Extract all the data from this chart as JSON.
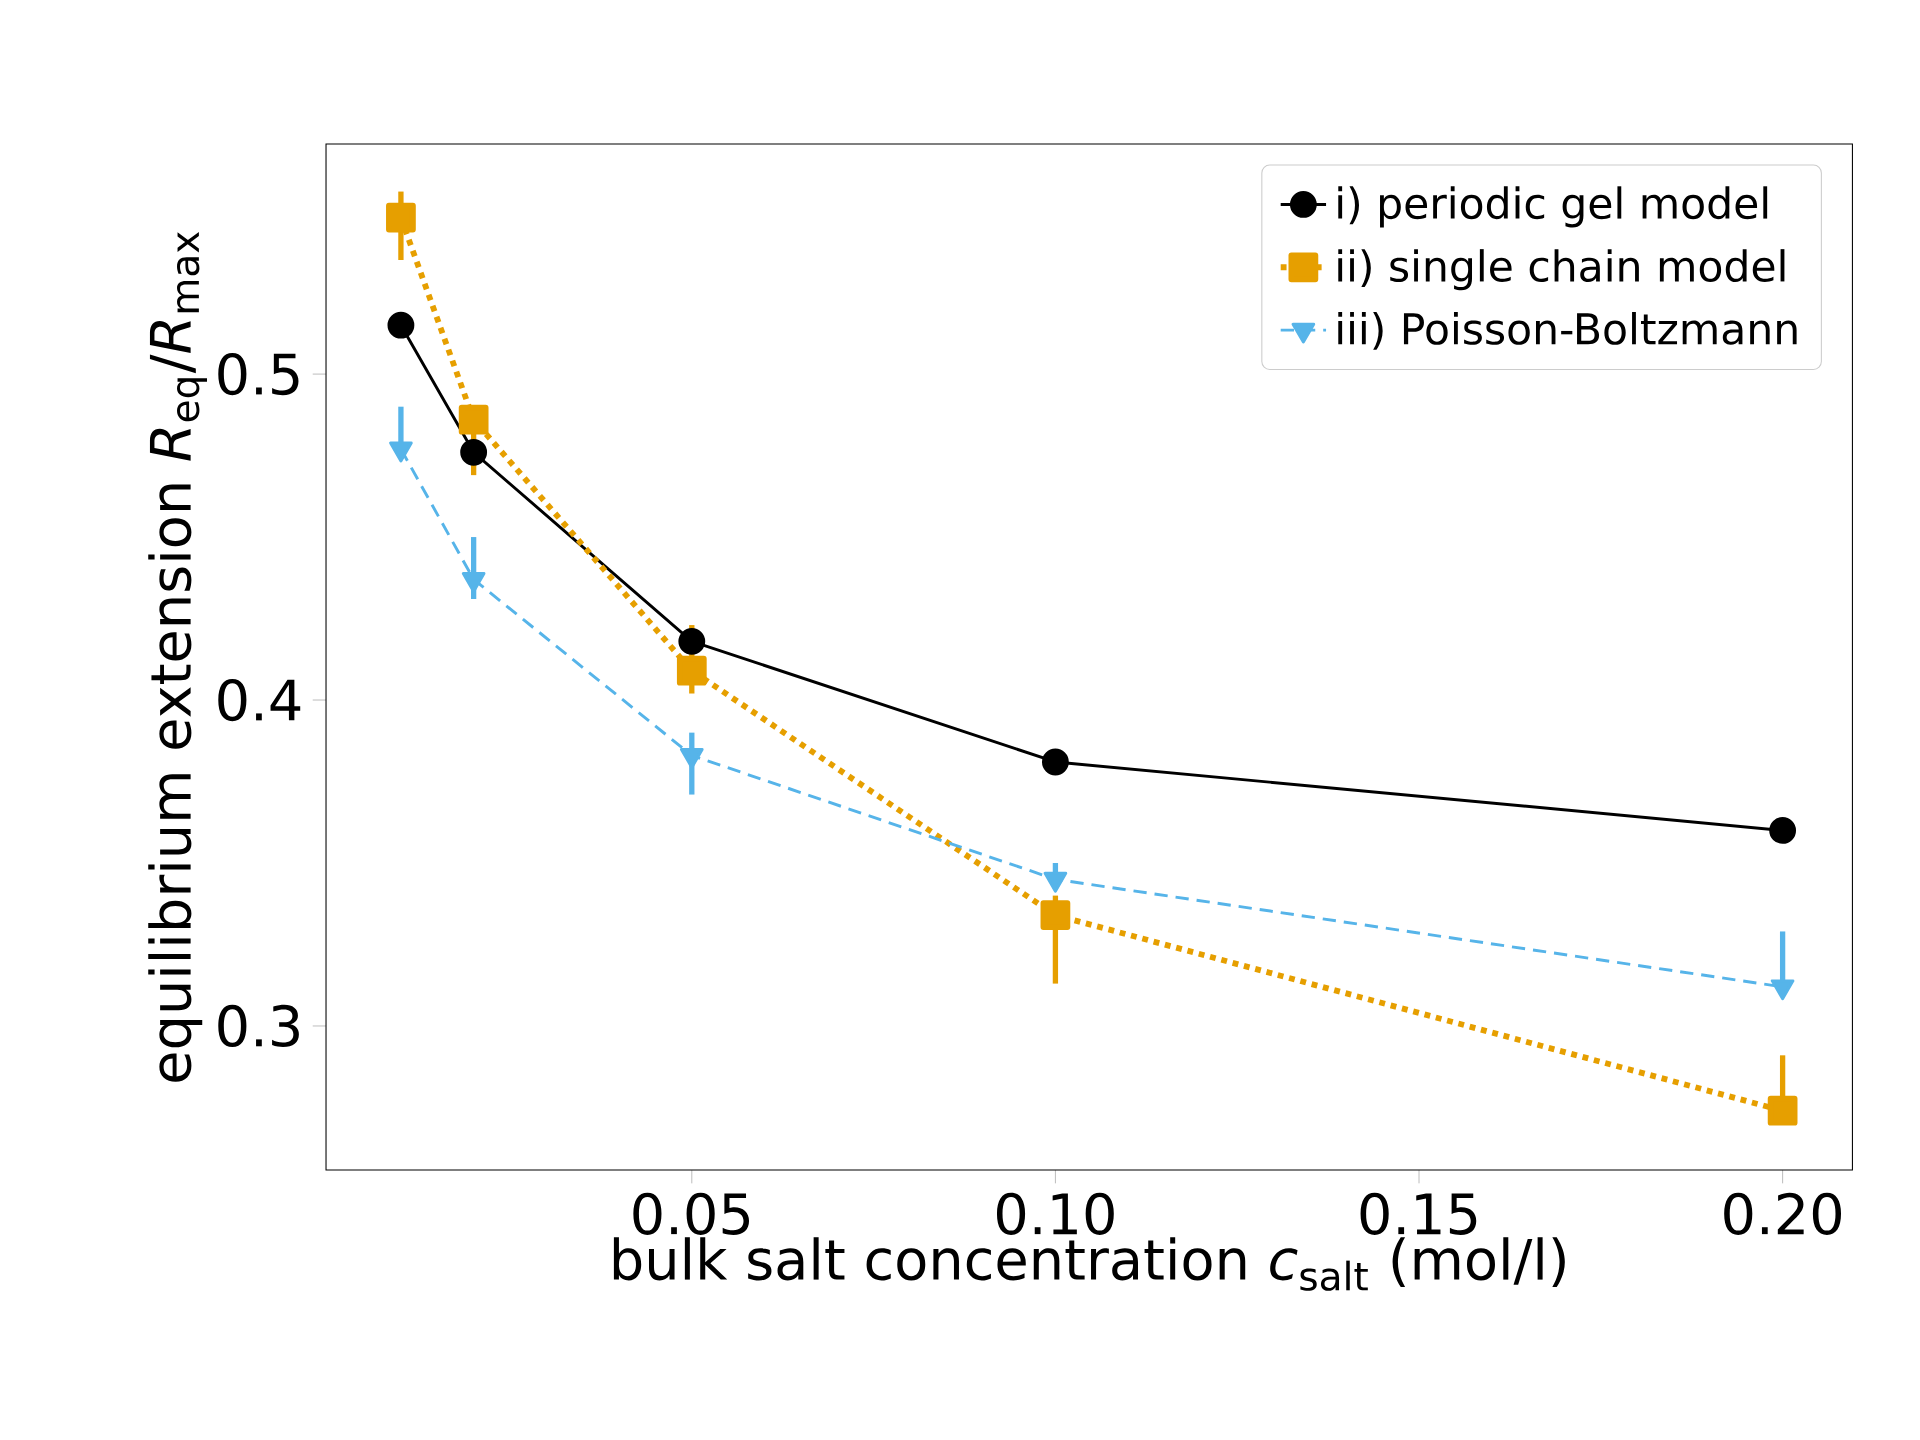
{
  "chart_data": {
    "type": "line",
    "xlabel": "bulk salt concentration *c*$_{salt}$ (mol/l)",
    "ylabel": "equilibrium extension *R*$_{eq}$/*R*$_{max}$",
    "x": [
      0.01,
      0.02,
      0.05,
      0.1,
      0.2
    ],
    "series": [
      {
        "name": "i) periodic gel model",
        "color": "#000000",
        "marker": "circle",
        "line_style": "solid",
        "values": [
          0.515,
          0.476,
          0.418,
          0.381,
          0.36
        ]
      },
      {
        "name": "ii) single chain model",
        "color": "#e69f00",
        "marker": "square",
        "line_style": "dotted",
        "values": [
          0.548,
          0.486,
          0.409,
          0.334,
          0.274
        ],
        "errors": [
          [
            0.535,
            0.556
          ],
          [
            0.469,
            0.49
          ],
          [
            0.402,
            0.423
          ],
          [
            0.313,
            0.34
          ],
          [
            0.274,
            0.291
          ]
        ]
      },
      {
        "name": "iii) Poisson-Boltzmann",
        "color": "#56b4e9",
        "marker": "triangle",
        "line_style": "dashed",
        "values": [
          0.477,
          0.437,
          0.383,
          0.345,
          0.312
        ],
        "errors": [
          [
            0.477,
            0.49
          ],
          [
            0.431,
            0.45
          ],
          [
            0.371,
            0.39
          ],
          [
            0.342,
            0.35
          ],
          [
            0.312,
            0.329
          ]
        ]
      }
    ],
    "xlim": [
      -0.0003,
      0.2096
    ],
    "ylim": [
      0.2558,
      0.5706
    ],
    "xticks": [
      0.05,
      {
        "value": 0.1,
        "label": "0.10"
      },
      0.15,
      {
        "value": 0.2,
        "label": "0.20"
      }
    ],
    "yticks": [
      0.3,
      0.4,
      0.5
    ],
    "legend": "top right",
    "grid": false
  }
}
